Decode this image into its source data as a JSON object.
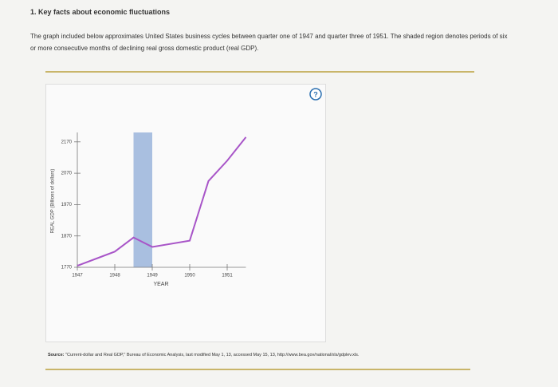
{
  "heading": "1. Key facts about economic fluctuations",
  "intro": "The graph included below approximates United States business cycles between quarter one of 1947 and quarter three of 1951. The shaded region denotes periods of six or more consecutive months of declining real gross domestic product (real GDP).",
  "help_icon": "?",
  "chart_data": {
    "type": "line",
    "x_label": "YEAR",
    "y_label": "REAL GDP (Billions of dollars)",
    "x": [
      1947,
      1948,
      1948.5,
      1949,
      1950,
      1950.5,
      1951,
      1951.5
    ],
    "values": [
      1775,
      1820,
      1865,
      1835,
      1855,
      2045,
      2110,
      2185
    ],
    "color": "#a855c8",
    "shaded_regions": [
      {
        "start": 1948.5,
        "end": 1949
      }
    ],
    "shade_color": "#a9bfe0",
    "xlim": [
      1947,
      1951.5
    ],
    "xticks": [
      1947,
      1948,
      1949,
      1950,
      1951
    ],
    "ylim": [
      1770,
      2200
    ],
    "yticks": [
      1770,
      1870,
      1970,
      2070,
      2170
    ]
  },
  "source_label": "Source:",
  "source_text": "\"Current-dollar and Real GDP,\" Bureau of Economic Analysis, last modified May 1, 13, accessed May 15, 13, http://www.bea.gov/national/xls/gdplev.xls."
}
